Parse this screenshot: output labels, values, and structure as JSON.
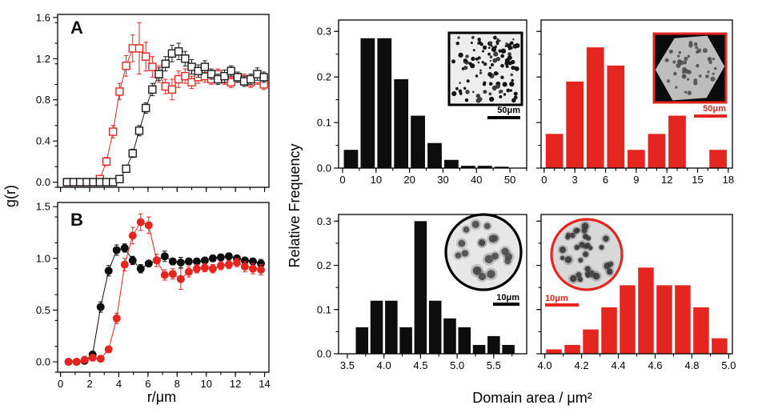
{
  "figure": {
    "red": "#e42520",
    "black": "#000000",
    "background": "#ffffff"
  },
  "chart_data": [
    {
      "id": "panelA",
      "type": "line",
      "panel_label": "A",
      "ylabel": "g(r)",
      "xlabel": "",
      "xlim": [
        -0.2,
        14.3
      ],
      "ylim": [
        -0.05,
        1.63
      ],
      "xticks": [
        0,
        2,
        4,
        6,
        8,
        10,
        12,
        14
      ],
      "xtick_labels": null,
      "xminor": 1,
      "yticks": [
        0.0,
        0.4,
        0.8,
        1.2,
        1.6
      ],
      "ytick_labels": [
        "0.0",
        "0.4",
        "0.8",
        "1.2",
        "1.6"
      ],
      "yminor": 0.2,
      "series": [
        {
          "name": "red-open-squares",
          "color": "#e42520",
          "marker": "open-square",
          "x": [
            0.45,
            0.9,
            1.35,
            1.8,
            2.25,
            2.7,
            3.15,
            3.6,
            4.05,
            4.5,
            4.95,
            5.4,
            5.85,
            6.3,
            6.75,
            7.2,
            7.65,
            8.1,
            8.55,
            9.0,
            9.45,
            9.9,
            10.35,
            10.8,
            11.25,
            11.7,
            12.15,
            12.6,
            13.05,
            13.5,
            13.95
          ],
          "y": [
            0,
            0,
            0,
            0,
            0,
            0.03,
            0.2,
            0.49,
            0.88,
            1.13,
            1.3,
            1.3,
            1.22,
            1.12,
            1.05,
            0.93,
            0.9,
            1.0,
            1.03,
            0.97,
            1.02,
            1.03,
            1.0,
            1.05,
            1.0,
            0.97,
            1.02,
            1.0,
            0.97,
            1.0,
            0.95
          ],
          "err": [
            0.01,
            0.01,
            0.01,
            0.01,
            0.01,
            0.02,
            0.04,
            0.06,
            0.08,
            0.1,
            0.13,
            0.25,
            0.14,
            0.1,
            0.08,
            0.07,
            0.1,
            0.08,
            0.07,
            0.06,
            0.06,
            0.06,
            0.05,
            0.05,
            0.05,
            0.05,
            0.05,
            0.05,
            0.05,
            0.05,
            0.05
          ]
        },
        {
          "name": "black-open-squares",
          "color": "#1a1a1a",
          "marker": "open-square",
          "x": [
            0.45,
            0.9,
            1.35,
            1.8,
            2.25,
            2.7,
            3.15,
            3.6,
            4.05,
            4.5,
            4.95,
            5.4,
            5.85,
            6.3,
            6.75,
            7.2,
            7.65,
            8.1,
            8.55,
            9.0,
            9.45,
            9.9,
            10.35,
            10.8,
            11.25,
            11.7,
            12.15,
            12.6,
            13.05,
            13.5,
            13.95
          ],
          "y": [
            0,
            0,
            0,
            0,
            0,
            0,
            0,
            0,
            0.03,
            0.13,
            0.28,
            0.5,
            0.72,
            0.9,
            1.05,
            1.15,
            1.25,
            1.27,
            1.2,
            1.12,
            1.08,
            1.12,
            1.05,
            1.0,
            1.03,
            1.08,
            1.02,
            0.98,
            1.0,
            1.05,
            1.02
          ],
          "err": [
            0.01,
            0.01,
            0.01,
            0.01,
            0.01,
            0.01,
            0.01,
            0.01,
            0.02,
            0.03,
            0.04,
            0.05,
            0.05,
            0.06,
            0.06,
            0.07,
            0.08,
            0.08,
            0.07,
            0.07,
            0.06,
            0.06,
            0.05,
            0.05,
            0.06,
            0.05,
            0.05,
            0.05,
            0.05,
            0.06,
            0.05
          ]
        }
      ]
    },
    {
      "id": "panelB",
      "type": "line",
      "panel_label": "B",
      "ylabel": "g(r)",
      "xlabel": "r/μm",
      "xlim": [
        -0.2,
        14.3
      ],
      "ylim": [
        -0.1,
        1.54
      ],
      "xticks": [
        0,
        2,
        4,
        6,
        8,
        10,
        12,
        14
      ],
      "xtick_labels": [
        "0",
        "2",
        "4",
        "6",
        "8",
        "10",
        "12",
        "14"
      ],
      "xminor": 1,
      "yticks": [
        0.0,
        0.5,
        1.0,
        1.5
      ],
      "ytick_labels": [
        "0.0",
        "0.5",
        "1.0",
        "1.5"
      ],
      "yminor": 0.25,
      "series": [
        {
          "name": "black-filled-circles",
          "color": "#0d0d0d",
          "marker": "filled-circle",
          "x": [
            0.55,
            1.1,
            1.65,
            2.2,
            2.75,
            3.3,
            3.85,
            4.4,
            4.95,
            5.5,
            6.05,
            6.6,
            7.15,
            7.7,
            8.25,
            8.8,
            9.35,
            9.9,
            10.45,
            11.0,
            11.55,
            12.1,
            12.65,
            13.2,
            13.75
          ],
          "y": [
            0,
            0,
            0.01,
            0.07,
            0.53,
            0.88,
            1.08,
            1.1,
            0.98,
            0.9,
            0.95,
            0.98,
            1.02,
            0.97,
            0.96,
            0.97,
            0.97,
            0.98,
            1.0,
            1.01,
            1.02,
            1.0,
            0.98,
            0.97,
            0.95
          ],
          "err": [
            0.01,
            0.01,
            0.01,
            0.03,
            0.05,
            0.05,
            0.05,
            0.04,
            0.04,
            0.04,
            0.03,
            0.03,
            0.05,
            0.03,
            0.05,
            0.03,
            0.03,
            0.03,
            0.03,
            0.03,
            0.03,
            0.03,
            0.03,
            0.03,
            0.04
          ]
        },
        {
          "name": "red-filled-circles",
          "color": "#e42520",
          "marker": "filled-circle",
          "x": [
            0.55,
            1.1,
            1.65,
            2.2,
            2.75,
            3.3,
            3.85,
            4.4,
            4.95,
            5.5,
            6.05,
            6.6,
            7.15,
            7.7,
            8.25,
            8.8,
            9.35,
            9.9,
            10.45,
            11.0,
            11.55,
            12.1,
            12.65,
            13.2,
            13.75
          ],
          "y": [
            0,
            0,
            0.02,
            0.04,
            0.03,
            0.12,
            0.42,
            0.94,
            1.22,
            1.35,
            1.32,
            0.98,
            0.84,
            0.85,
            0.8,
            0.87,
            0.9,
            0.91,
            0.9,
            0.93,
            0.94,
            0.96,
            0.92,
            0.9,
            0.89
          ],
          "err": [
            0.01,
            0.01,
            0.01,
            0.02,
            0.02,
            0.03,
            0.05,
            0.06,
            0.08,
            0.08,
            0.08,
            0.06,
            0.05,
            0.05,
            0.1,
            0.05,
            0.04,
            0.04,
            0.04,
            0.04,
            0.04,
            0.04,
            0.05,
            0.05,
            0.05
          ]
        }
      ]
    },
    {
      "id": "histLargeBlack",
      "type": "bar",
      "color": "#0d0d0d",
      "ylabel": "Relative Frequency",
      "xlabel": "Domain area / μm²",
      "bin_start": 0,
      "bin_width": 5,
      "values": [
        0.04,
        0.285,
        0.285,
        0.195,
        0.115,
        0.055,
        0.018,
        0.005,
        0.005,
        0.003
      ],
      "xlim": [
        -1.2,
        55
      ],
      "xticks": [
        0,
        10,
        20,
        30,
        40,
        50
      ],
      "xtick_labels": [
        "0",
        "10",
        "20",
        "30",
        "40",
        "50"
      ],
      "xminor": 5,
      "ylim": [
        0,
        0.325
      ],
      "yticks": [
        0.0,
        0.1,
        0.2,
        0.3
      ],
      "ytick_labels": [
        "0.0",
        "0.1",
        "0.2",
        "0.3"
      ],
      "yminor": 0.05,
      "inset": {
        "shape": "square",
        "style": "dots-small-many",
        "border_color": "#000000",
        "scalebar_label": "50μm"
      }
    },
    {
      "id": "histLargeRed",
      "type": "bar",
      "color": "#e42520",
      "ylabel": "",
      "xlabel": "Domain area / μm²",
      "bin_start": 0,
      "bin_width": 2,
      "values": [
        0.075,
        0.19,
        0.265,
        0.225,
        0.04,
        0.075,
        0.115,
        0,
        0.04
      ],
      "xlim": [
        -0.3,
        18.4
      ],
      "xticks": [
        0,
        3,
        6,
        9,
        12,
        15,
        18
      ],
      "xtick_labels": [
        "0",
        "3",
        "6",
        "9",
        "12",
        "15",
        "18"
      ],
      "xminor": 1,
      "ylim": [
        0,
        0.325
      ],
      "yticks": [
        0.0,
        0.1,
        0.2,
        0.3
      ],
      "ytick_labels": null,
      "yminor": 0.05,
      "inset": {
        "shape": "square",
        "style": "hexagon-crystal",
        "border_color": "#e42520",
        "scalebar_label": "50μm"
      }
    },
    {
      "id": "histSmallBlack",
      "type": "bar",
      "color": "#0d0d0d",
      "ylabel": "Relative Frequency",
      "xlabel": "Domain area / μm²",
      "bin_start": 3.6,
      "bin_width": 0.2,
      "values": [
        0.06,
        0.12,
        0.12,
        0.06,
        0.3,
        0.12,
        0.08,
        0.06,
        0.02,
        0.04,
        0.02
      ],
      "xlim": [
        3.38,
        5.95
      ],
      "xticks": [
        3.5,
        4.0,
        4.5,
        5.0,
        5.5
      ],
      "xtick_labels": [
        "3.5",
        "4.0",
        "4.5",
        "5.0",
        "5.5"
      ],
      "xminor": 0.25,
      "ylim": [
        0,
        0.315
      ],
      "yticks": [
        0.0,
        0.1,
        0.2,
        0.3
      ],
      "ytick_labels": [
        "0.0",
        "0.1",
        "0.2",
        "0.3"
      ],
      "yminor": 0.05,
      "inset": {
        "shape": "circle",
        "style": "dots-fuzzy-few",
        "border_color": "#000000",
        "scalebar_label": "10μm"
      }
    },
    {
      "id": "histSmallRed",
      "type": "bar",
      "color": "#e42520",
      "ylabel": "",
      "xlabel": "Domain area / μm²",
      "bin_start": 4.0,
      "bin_width": 0.1,
      "values": [
        0.01,
        0.02,
        0.055,
        0.105,
        0.155,
        0.195,
        0.155,
        0.155,
        0.105,
        0.035
      ],
      "xlim": [
        3.98,
        5.02
      ],
      "xticks": [
        4.0,
        4.2,
        4.4,
        4.6,
        4.8,
        5.0
      ],
      "xtick_labels": [
        "4.0",
        "4.2",
        "4.4",
        "4.6",
        "4.8",
        "5.0"
      ],
      "xminor": 0.1,
      "ylim": [
        0,
        0.315
      ],
      "yticks": [
        0.0,
        0.1,
        0.2,
        0.3
      ],
      "ytick_labels": null,
      "yminor": 0.05,
      "inset": {
        "shape": "circle",
        "style": "dots-medium-many",
        "border_color": "#e42520",
        "scalebar_label": "10μm"
      }
    }
  ]
}
